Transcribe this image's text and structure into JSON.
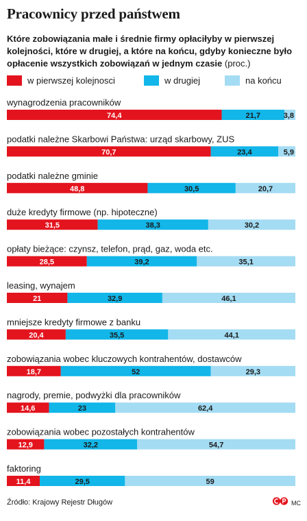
{
  "title": "Pracownicy przed państwem",
  "subtitle": {
    "text": "Które zobowiązania małe i średnie firmy opłaciłyby w pierwszej kolejności, które w drugiej, a które na końcu, gdyby konieczne było opłacenie wszystkich zobowiązań w jednym czasie",
    "unit": "(proc.)"
  },
  "colors": {
    "first": "#e3141e",
    "second": "#12b6e8",
    "last": "#a4dcf3"
  },
  "chart_data": {
    "type": "bar",
    "orientation": "horizontal",
    "stacked": true,
    "categories": [
      "wynagrodzenia pracowników",
      "podatki należne Skarbowi Państwa: urząd skarbowy, ZUS",
      "podatki należne gminie",
      "duże kredyty firmowe (np. hipoteczne)",
      "opłaty bieżące: czynsz, telefon, prąd, gaz, woda etc.",
      "leasing, wynajem",
      "mniejsze kredyty firmowe z banku",
      "zobowiązania wobec kluczowych kontrahentów, dostawców",
      "nagrody, premie, podwyżki dla pracowników",
      "zobowiązania wobec pozostałych kontrahentów",
      "faktoring"
    ],
    "series": [
      {
        "name": "w pierwszej kolejnosci",
        "values": [
          74.4,
          70.7,
          48.8,
          31.5,
          28.5,
          21,
          20.4,
          18.7,
          14.6,
          12.9,
          11.4
        ]
      },
      {
        "name": "w drugiej",
        "values": [
          21.7,
          23.4,
          30.5,
          38.3,
          39.2,
          32.9,
          35.5,
          52,
          23,
          32.2,
          29.5
        ]
      },
      {
        "name": "na końcu",
        "values": [
          3.8,
          5.9,
          20.7,
          30.2,
          35.1,
          46.1,
          44.1,
          29.3,
          62.4,
          54.7,
          59
        ]
      }
    ],
    "value_labels": [
      [
        "74,4",
        "21,7",
        "3,8"
      ],
      [
        "70,7",
        "23,4",
        "5,9"
      ],
      [
        "48,8",
        "30,5",
        "20,7"
      ],
      [
        "31,5",
        "38,3",
        "30,2"
      ],
      [
        "28,5",
        "39,2",
        "35,1"
      ],
      [
        "21",
        "32,9",
        "46,1"
      ],
      [
        "20,4",
        "35,5",
        "44,1"
      ],
      [
        "18,7",
        "52",
        "29,3"
      ],
      [
        "14,6",
        "23",
        "62,4"
      ],
      [
        "12,9",
        "32,2",
        "54,7"
      ],
      [
        "11,4",
        "29,5",
        "59"
      ]
    ],
    "legend_position": "top",
    "grid": false
  },
  "source": "Źródło: Krajowy Rejestr Długów",
  "credit": "MC"
}
